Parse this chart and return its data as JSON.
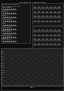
{
  "bg_color": "#111111",
  "table_bg": "#1a1a1a",
  "grid_color": "#444444",
  "grid_light": "#333333",
  "text_color": "#bbbbbb",
  "white": "#cccccc",
  "dark_top": "#0d0d0d"
}
